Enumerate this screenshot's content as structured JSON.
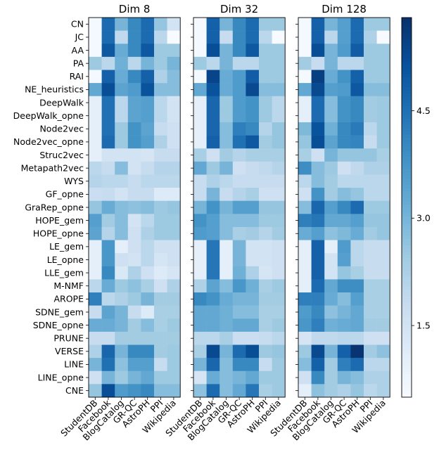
{
  "chart_data": {
    "type": "heatmap",
    "panels": [
      {
        "title": "Dim 8"
      },
      {
        "title": "Dim 32"
      },
      {
        "title": "Dim 128"
      }
    ],
    "row_labels": [
      "CN",
      "JC",
      "AA",
      "PA",
      "RAI",
      "NE_heuristics",
      "DeepWalk",
      "DeepWalk_opne",
      "Node2vec",
      "Node2vec_opne",
      "Struc2vec",
      "Metapath2vec",
      "WYS",
      "GF_opne",
      "GraRep_opne",
      "HOPE_gem",
      "HOPE_opne",
      "LE_gem",
      "LE_opne",
      "LLE_gem",
      "M-NMF",
      "AROPE",
      "SDNE_gem",
      "SDNE_opne",
      "PRUNE",
      "VERSE",
      "LINE",
      "LINE_opne",
      "CNE"
    ],
    "col_labels": [
      "StudentDB",
      "Facebook",
      "BlogCatalog",
      "GR-QC",
      "AstroPH",
      "PPI",
      "Wikipedia"
    ],
    "colorbar": {
      "ticks": [
        1.5,
        3.0,
        4.5
      ],
      "tick_labels": [
        "1.5",
        "3.0",
        "4.5"
      ],
      "range": [
        0.5,
        5.8
      ]
    },
    "colormap": [
      "#f7fbff",
      "#deebf7",
      "#c6dbef",
      "#9ecae1",
      "#6baed6",
      "#4292c6",
      "#2171b5",
      "#08519c",
      "#08306b"
    ],
    "values": [
      [
        [
          0.6,
          4.6,
          3.0,
          4.0,
          4.6,
          2.6,
          1.5
        ],
        [
          0.6,
          4.6,
          1.9,
          4.0,
          4.6,
          2.0,
          0.5
        ],
        [
          0.6,
          5.0,
          3.2,
          4.0,
          5.0,
          2.5,
          2.5
        ],
        [
          2.5,
          2.0,
          3.1,
          2.0,
          3.0,
          2.5,
          3.0
        ],
        [
          0.6,
          4.8,
          3.2,
          4.0,
          4.8,
          2.2,
          2.8
        ],
        [
          3.3,
          5.2,
          3.4,
          3.6,
          5.1,
          2.8,
          2.8
        ],
        [
          1.0,
          4.5,
          2.0,
          3.4,
          3.5,
          2.0,
          1.5
        ],
        [
          1.0,
          4.5,
          2.0,
          3.4,
          3.5,
          2.0,
          1.5
        ],
        [
          1.0,
          4.5,
          2.5,
          3.8,
          3.4,
          1.8,
          1.6
        ],
        [
          1.0,
          4.6,
          2.5,
          3.8,
          3.5,
          2.2,
          1.6
        ],
        [
          1.0,
          1.5,
          1.5,
          1.5,
          1.4,
          1.8,
          1.8
        ],
        [
          2.0,
          1.8,
          2.8,
          1.5,
          1.8,
          2.1,
          2.1
        ],
        [
          2.1,
          2.0,
          2.0,
          1.8,
          2.0,
          2.0,
          2.0
        ],
        [
          1.7,
          1.8,
          1.5,
          1.8,
          1.8,
          1.2,
          1.2
        ],
        [
          2.6,
          3.2,
          2.8,
          2.7,
          2.8,
          2.5,
          2.6
        ],
        [
          3.5,
          2.4,
          2.8,
          1.5,
          2.0,
          2.5,
          2.5
        ],
        [
          3.4,
          2.1,
          2.8,
          1.6,
          2.2,
          2.5,
          2.5
        ],
        [
          1.0,
          3.7,
          1.0,
          1.6,
          2.0,
          1.6,
          1.6
        ],
        [
          1.0,
          3.7,
          1.6,
          1.5,
          2.0,
          1.4,
          1.6
        ],
        [
          1.0,
          4.0,
          1.3,
          2.2,
          1.6,
          1.2,
          1.4
        ],
        [
          2.0,
          3.2,
          2.5,
          2.7,
          2.3,
          1.6,
          2.2
        ],
        [
          4.2,
          2.0,
          2.2,
          2.5,
          3.0,
          2.4,
          2.4
        ],
        [
          1.8,
          3.4,
          3.0,
          1.8,
          1.2,
          2.3,
          2.3
        ],
        [
          3.2,
          3.2,
          3.0,
          2.4,
          2.8,
          2.3,
          2.5
        ],
        [
          1.8,
          1.8,
          2.4,
          2.4,
          2.4,
          2.4,
          2.4
        ],
        [
          2.2,
          4.7,
          3.0,
          4.0,
          4.0,
          2.4,
          2.5
        ],
        [
          3.0,
          4.5,
          2.7,
          3.5,
          3.5,
          1.8,
          2.5
        ],
        [
          1.6,
          3.0,
          2.5,
          3.0,
          3.3,
          2.5,
          2.5
        ],
        [
          2.6,
          5.2,
          3.6,
          3.8,
          4.0,
          2.8,
          2.8
        ]
      ],
      [
        [
          0.6,
          4.8,
          3.0,
          4.0,
          4.6,
          2.5,
          2.5
        ],
        [
          0.6,
          4.8,
          1.8,
          4.0,
          4.6,
          2.0,
          0.5
        ],
        [
          0.6,
          5.2,
          3.0,
          4.0,
          5.0,
          2.5,
          2.5
        ],
        [
          2.5,
          2.0,
          3.0,
          2.0,
          2.0,
          2.5,
          2.5
        ],
        [
          0.6,
          5.4,
          3.2,
          3.6,
          4.9,
          2.5,
          2.5
        ],
        [
          3.3,
          5.1,
          3.2,
          3.6,
          5.3,
          2.8,
          2.8
        ],
        [
          1.0,
          4.7,
          2.5,
          3.6,
          3.8,
          2.5,
          2.0
        ],
        [
          1.0,
          4.7,
          2.5,
          3.6,
          3.8,
          2.5,
          2.0
        ],
        [
          1.0,
          4.7,
          2.8,
          4.2,
          4.0,
          2.1,
          2.6
        ],
        [
          1.0,
          4.8,
          2.8,
          4.5,
          5.0,
          2.4,
          2.6
        ],
        [
          2.3,
          1.6,
          2.4,
          2.1,
          2.3,
          2.3,
          2.3
        ],
        [
          3.3,
          2.5,
          3.0,
          1.6,
          1.8,
          1.9,
          2.1
        ],
        [
          1.8,
          2.2,
          2.0,
          1.8,
          1.8,
          1.8,
          1.8
        ],
        [
          1.8,
          3.0,
          1.8,
          2.1,
          2.3,
          1.6,
          1.6
        ],
        [
          3.0,
          3.8,
          3.0,
          3.5,
          3.5,
          2.6,
          2.6
        ],
        [
          3.8,
          3.5,
          2.8,
          2.8,
          2.8,
          2.5,
          2.5
        ],
        [
          3.6,
          3.5,
          2.8,
          2.3,
          2.4,
          2.1,
          2.4
        ],
        [
          1.0,
          4.4,
          1.0,
          3.0,
          1.5,
          1.5,
          1.6
        ],
        [
          1.0,
          4.4,
          1.0,
          3.0,
          1.5,
          1.5,
          1.6
        ],
        [
          1.0,
          4.4,
          1.0,
          3.1,
          2.2,
          1.4,
          1.6
        ],
        [
          2.2,
          3.4,
          2.8,
          3.7,
          3.1,
          2.3,
          2.5
        ],
        [
          4.0,
          3.8,
          3.2,
          3.0,
          3.0,
          2.4,
          2.4
        ],
        [
          3.3,
          3.3,
          3.1,
          2.8,
          2.8,
          2.3,
          2.3
        ],
        [
          3.3,
          3.3,
          3.1,
          3.3,
          3.3,
          2.3,
          2.5
        ],
        [
          2.0,
          2.0,
          2.3,
          1.7,
          1.7,
          1.8,
          2.0
        ],
        [
          2.3,
          5.3,
          3.0,
          4.6,
          5.2,
          2.5,
          2.6
        ],
        [
          3.0,
          4.7,
          2.8,
          4.0,
          4.0,
          1.8,
          2.5
        ],
        [
          1.4,
          3.2,
          2.8,
          3.0,
          3.3,
          2.5,
          2.5
        ],
        [
          2.7,
          4.6,
          2.8,
          3.3,
          4.4,
          2.3,
          2.5
        ]
      ],
      [
        [
          0.6,
          4.8,
          3.0,
          3.5,
          4.6,
          2.5,
          2.5
        ],
        [
          0.6,
          4.8,
          2.0,
          3.5,
          4.6,
          2.2,
          0.5
        ],
        [
          0.6,
          5.2,
          3.0,
          3.6,
          4.9,
          2.5,
          2.5
        ],
        [
          2.4,
          1.8,
          3.0,
          2.0,
          2.0,
          2.5,
          2.5
        ],
        [
          0.6,
          5.5,
          3.2,
          3.8,
          4.8,
          2.5,
          2.5
        ],
        [
          3.3,
          5.3,
          3.5,
          3.6,
          5.0,
          2.8,
          2.8
        ],
        [
          1.0,
          4.6,
          2.8,
          3.8,
          4.0,
          2.4,
          2.5
        ],
        [
          1.0,
          4.6,
          2.8,
          3.8,
          4.0,
          2.4,
          2.5
        ],
        [
          2.9,
          5.1,
          3.1,
          4.0,
          4.3,
          2.0,
          2.5
        ],
        [
          2.6,
          5.2,
          3.4,
          4.0,
          4.1,
          1.8,
          2.5
        ],
        [
          2.3,
          1.6,
          3.0,
          2.6,
          2.6,
          2.6,
          2.3
        ],
        [
          3.9,
          2.8,
          2.5,
          1.6,
          1.9,
          2.2,
          2.2
        ],
        [
          2.0,
          2.8,
          2.4,
          2.0,
          2.0,
          2.0,
          2.0
        ],
        [
          1.6,
          3.8,
          2.4,
          2.8,
          2.6,
          2.0,
          2.0
        ],
        [
          2.8,
          4.7,
          3.5,
          4.0,
          4.6,
          2.5,
          2.5
        ],
        [
          4.2,
          4.4,
          3.3,
          3.3,
          3.5,
          2.6,
          2.6
        ],
        [
          3.2,
          3.5,
          2.7,
          2.9,
          3.2,
          2.4,
          2.6
        ],
        [
          1.0,
          4.8,
          1.0,
          3.6,
          2.0,
          1.8,
          1.8
        ],
        [
          1.0,
          4.8,
          1.5,
          3.5,
          2.0,
          1.8,
          1.8
        ],
        [
          1.0,
          4.8,
          1.5,
          2.6,
          2.3,
          1.8,
          1.8
        ],
        [
          1.0,
          4.6,
          3.3,
          3.9,
          3.9,
          2.3,
          2.3
        ],
        [
          4.2,
          4.2,
          3.2,
          2.8,
          3.5,
          2.3,
          2.3
        ],
        [
          3.6,
          4.0,
          2.7,
          3.0,
          3.3,
          2.3,
          2.3
        ],
        [
          3.7,
          4.2,
          3.1,
          3.2,
          3.3,
          2.4,
          2.4
        ],
        [
          1.4,
          1.9,
          1.9,
          2.0,
          2.0,
          1.6,
          1.6
        ],
        [
          2.5,
          5.3,
          3.0,
          4.8,
          5.7,
          2.4,
          2.7
        ],
        [
          2.8,
          4.8,
          2.4,
          4.2,
          4.6,
          2.0,
          2.0
        ],
        [
          1.6,
          4.0,
          2.4,
          3.0,
          2.8,
          2.2,
          2.2
        ],
        [
          1.0,
          2.7,
          2.4,
          2.2,
          2.6,
          2.0,
          2.2
        ]
      ]
    ]
  }
}
